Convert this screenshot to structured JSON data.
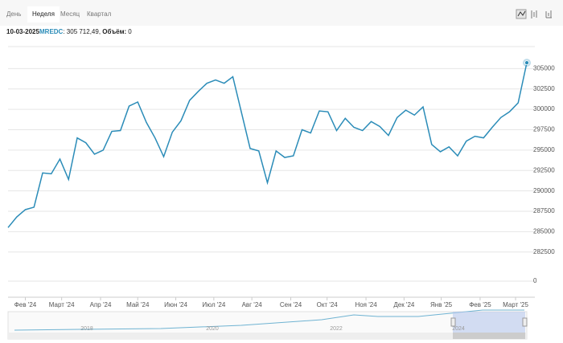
{
  "toolbar": {
    "tabs": [
      "День",
      "Неделя",
      "Месяц",
      "Квартал"
    ],
    "active": 1
  },
  "info": {
    "date": "10-03-2025",
    "ticker": "MREDC",
    "price": ": 305 712,49, ",
    "volume_label": "Объём:",
    "volume": 0
  },
  "chart_data": {
    "type": "line",
    "series": [
      {
        "name": "MREDC",
        "color": "#2b8cb8",
        "values": [
          285500,
          286800,
          287700,
          288000,
          292200,
          292100,
          293900,
          291400,
          296500,
          295900,
          294500,
          295000,
          297300,
          297400,
          300400,
          300900,
          298400,
          296500,
          294200,
          297200,
          298600,
          301100,
          302200,
          303200,
          303600,
          303200,
          304000,
          299600,
          295200,
          294900,
          291000,
          294900,
          294100,
          294300,
          297500,
          297100,
          299800,
          299700,
          297400,
          298900,
          297800,
          297400,
          298500,
          297900,
          296800,
          299000,
          299900,
          299300,
          300300,
          295700,
          294800,
          295400,
          294300,
          296100,
          296700,
          296500,
          297800,
          299000,
          299700,
          300800,
          305712.49
        ]
      }
    ],
    "ylim": [
      281000,
      307500
    ],
    "yticks": [
      282500,
      285000,
      287500,
      290000,
      292500,
      295000,
      297500,
      300000,
      302500,
      305000
    ],
    "volume_yticks": [
      0
    ],
    "xticks": [
      {
        "value": 2,
        "label": "Фев '24"
      },
      {
        "value": 6.2,
        "label": "Март '24"
      },
      {
        "value": 10.7,
        "label": "Апр '24"
      },
      {
        "value": 15,
        "label": "Май '24"
      },
      {
        "value": 19.4,
        "label": "Июн '24"
      },
      {
        "value": 23.8,
        "label": "Июл '24"
      },
      {
        "value": 28.2,
        "label": "Авг '24"
      },
      {
        "value": 32.7,
        "label": "Сен '24"
      },
      {
        "value": 36.9,
        "label": "Окт '24"
      },
      {
        "value": 41.4,
        "label": "Ноя '24"
      },
      {
        "value": 45.8,
        "label": "Дек '24"
      },
      {
        "value": 50.1,
        "label": "Янв '25"
      },
      {
        "value": 54.6,
        "label": "Фев '25"
      },
      {
        "value": 58.7,
        "label": "Март '25"
      }
    ],
    "navigator_labels": [
      "2018",
      "2020",
      "2022",
      "2024"
    ],
    "grid": true
  }
}
